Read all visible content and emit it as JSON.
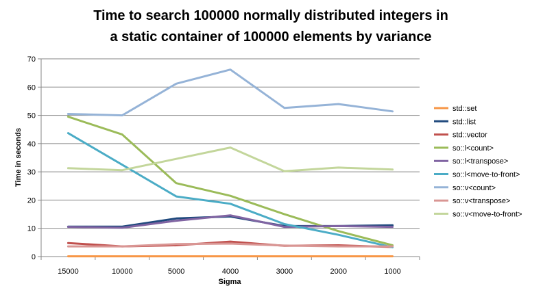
{
  "chart_data": {
    "type": "line",
    "title_line1": "Time to search 100000  normally distributed integers in",
    "title_line2": "a static container of 100000 elements by variance",
    "xlabel": "Sigma",
    "ylabel": "Time in seconds",
    "ylim": [
      0,
      70
    ],
    "yticks": [
      0,
      10,
      20,
      30,
      40,
      50,
      60,
      70
    ],
    "grid": true,
    "legend_position": "right",
    "categories": [
      "15000",
      "10000",
      "5000",
      "4000",
      "3000",
      "2000",
      "1000"
    ],
    "series": [
      {
        "name": "std::set",
        "color": "#f79646",
        "values": [
          0.1,
          0.1,
          0.1,
          0.1,
          0.1,
          0.1,
          0.1
        ]
      },
      {
        "name": "std::list",
        "color": "#1f497d",
        "values": [
          10.6,
          10.6,
          13.5,
          14.2,
          10.8,
          10.8,
          11.1
        ]
      },
      {
        "name": "std::vector",
        "color": "#c0504d",
        "values": [
          4.8,
          3.6,
          4.0,
          5.3,
          3.8,
          4.0,
          3.4
        ]
      },
      {
        "name": "so::l<count>",
        "color": "#9bbb59",
        "values": [
          49.5,
          43.2,
          26.0,
          21.5,
          15.0,
          9.0,
          4.0
        ]
      },
      {
        "name": "so::l<transpose>",
        "color": "#8064a2",
        "values": [
          10.5,
          10.2,
          12.7,
          14.6,
          10.5,
          10.8,
          10.5
        ]
      },
      {
        "name": "so::l<move-to-front>",
        "color": "#4bacc6",
        "values": [
          43.7,
          32.5,
          21.3,
          18.7,
          11.5,
          7.7,
          3.3
        ]
      },
      {
        "name": "so::v<count>",
        "color": "#95b3d7",
        "values": [
          50.5,
          50.0,
          61.2,
          66.2,
          52.6,
          54.0,
          51.4
        ]
      },
      {
        "name": "so::v<transpose>",
        "color": "#d99694",
        "values": [
          3.6,
          3.6,
          4.4,
          4.6,
          3.9,
          3.6,
          3.6
        ]
      },
      {
        "name": "so::v<move-to-front>",
        "color": "#c3d69b",
        "values": [
          31.3,
          30.6,
          34.6,
          38.6,
          30.2,
          31.5,
          30.8
        ]
      }
    ]
  }
}
